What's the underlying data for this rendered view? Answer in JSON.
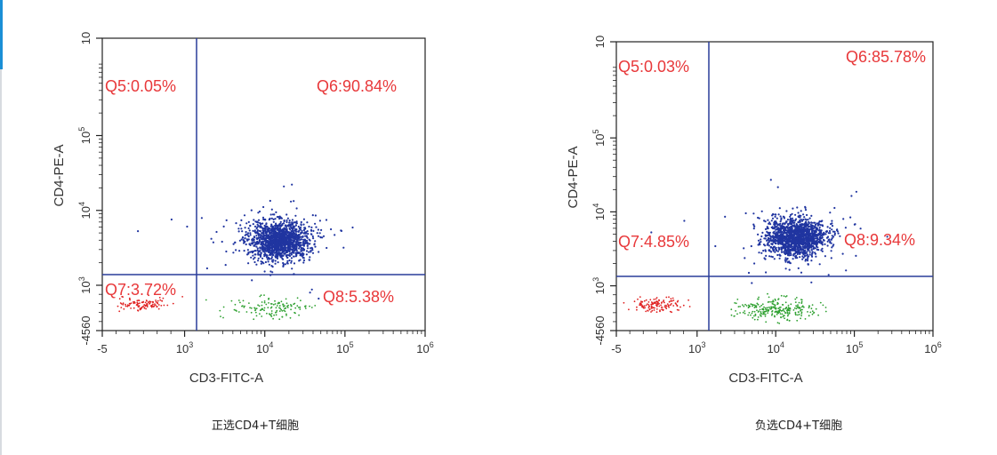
{
  "page": {
    "accent_color": "#1a8fd6"
  },
  "chart_data": [
    {
      "type": "scatter",
      "caption": "正选CD4+T细胞",
      "xlabel": "CD3-FITC-A",
      "ylabel": "CD4-PE-A",
      "x_ticks": [
        "-5",
        "10",
        "10",
        "10"
      ],
      "x_tick_exps": [
        "",
        "3",
        "5",
        "6"
      ],
      "x_tick_mid": {
        "base": "10",
        "exp": "4"
      },
      "y_ticks": [
        {
          "label": "-4560",
          "exp": ""
        },
        {
          "label": "10",
          "exp": "3"
        },
        {
          "label": "10",
          "exp": "4"
        },
        {
          "label": "10",
          "exp": "5"
        },
        {
          "label": "10",
          "exp": ""
        }
      ],
      "gate_x": 1000,
      "gate_y": 1000,
      "quadrants": [
        {
          "id": "Q5",
          "label": "Q5:0.05%",
          "percent": 0.05
        },
        {
          "id": "Q6",
          "label": "Q6:90.84%",
          "percent": 90.84
        },
        {
          "id": "Q7",
          "label": "Q7:3.72%",
          "percent": 3.72
        },
        {
          "id": "Q8",
          "label": "Q8:5.38%",
          "percent": 5.38
        }
      ],
      "populations": [
        {
          "name": "Q6",
          "color": "#2035a0",
          "cx": 15000,
          "cy": 4000,
          "n": 1500
        },
        {
          "name": "Q8",
          "color": "#2ea030",
          "cx": 12000,
          "cy": 0,
          "n": 130
        },
        {
          "name": "Q7",
          "color": "#e02020",
          "cx": 30,
          "cy": 0,
          "n": 110
        }
      ],
      "colors": {
        "label": "#e8383a",
        "gate": "#2a3d9a",
        "axis": "#222222"
      }
    },
    {
      "type": "scatter",
      "caption": "负选CD4+T细胞",
      "xlabel": "CD3-FITC-A",
      "ylabel": "CD4-PE-A",
      "x_ticks": [
        "-5",
        "10",
        "10",
        "10"
      ],
      "x_tick_exps": [
        "",
        "3",
        "5",
        "6"
      ],
      "x_tick_mid": {
        "base": "10",
        "exp": "4"
      },
      "y_ticks": [
        {
          "label": "-4560",
          "exp": ""
        },
        {
          "label": "10",
          "exp": "3"
        },
        {
          "label": "10",
          "exp": "4"
        },
        {
          "label": "10",
          "exp": "5"
        },
        {
          "label": "10",
          "exp": ""
        }
      ],
      "gate_x": 1000,
      "gate_y": 1000,
      "quadrants": [
        {
          "id": "Q5",
          "label": "Q5:0.03%",
          "percent": 0.03
        },
        {
          "id": "Q6",
          "label": "Q6:85.78%",
          "percent": 85.78
        },
        {
          "id": "Q7",
          "label": "Q7:4.85%",
          "percent": 4.85
        },
        {
          "id": "Q8",
          "label": "Q8:9.34%",
          "percent": 9.34
        }
      ],
      "populations": [
        {
          "name": "Q6",
          "color": "#2035a0",
          "cx": 18000,
          "cy": 4500,
          "n": 1500
        },
        {
          "name": "Q8",
          "color": "#2ea030",
          "cx": 10000,
          "cy": 0,
          "n": 260
        },
        {
          "name": "Q7",
          "color": "#e02020",
          "cx": 30,
          "cy": 0,
          "n": 130
        }
      ],
      "colors": {
        "label": "#e8383a",
        "gate": "#2a3d9a",
        "axis": "#222222"
      }
    }
  ]
}
